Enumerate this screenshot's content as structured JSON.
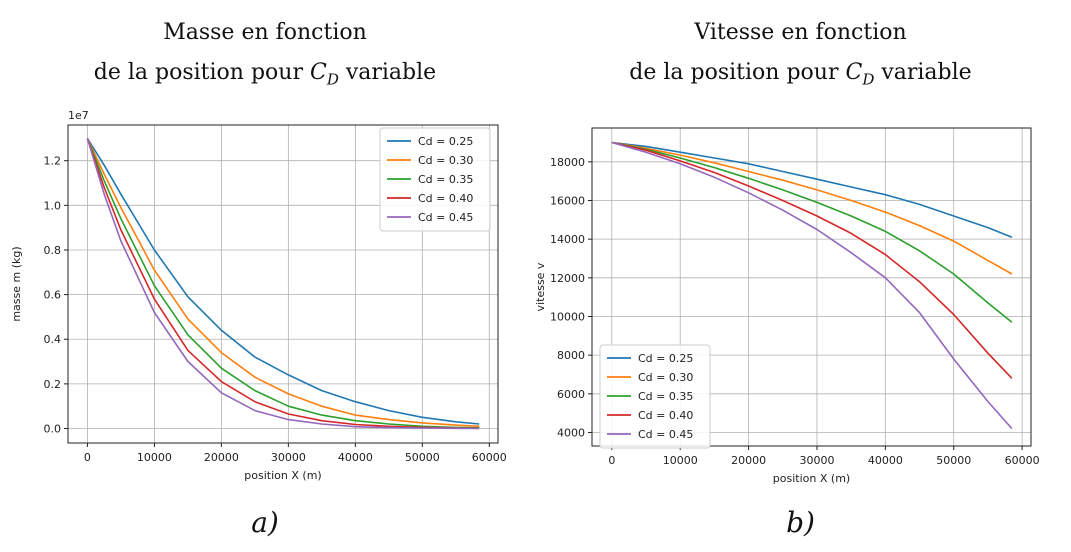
{
  "chart_data": [
    {
      "type": "line",
      "title_line1": "Masse en fonction",
      "title_line2_prefix": "de la position pour ",
      "title_cd": "C",
      "title_cd_sub": "D",
      "title_line2_suffix": " variable",
      "panel_label": "a)",
      "xlabel": "position X (m)",
      "ylabel": "masse m (kg)",
      "offset_text": "1e7",
      "xlim": [
        -2900,
        61300
      ],
      "ylim": [
        -0.065,
        1.36
      ],
      "xticks": [
        0,
        10000,
        20000,
        30000,
        40000,
        50000,
        60000
      ],
      "yticks": [
        0.0,
        0.2,
        0.4,
        0.6,
        0.8,
        1.0,
        1.2
      ],
      "ytick_labels": [
        "0.0",
        "0.2",
        "0.4",
        "0.6",
        "0.8",
        "1.0",
        "1.2"
      ],
      "grid": true,
      "legend_position": "top-right",
      "x": [
        0,
        2500,
        5000,
        10000,
        15000,
        20000,
        25000,
        30000,
        35000,
        40000,
        45000,
        50000,
        55000,
        58500
      ],
      "series": [
        {
          "name": "Cd = 0.25",
          "color": "#1f77b4",
          "values": [
            1.3,
            1.18,
            1.05,
            0.8,
            0.59,
            0.44,
            0.32,
            0.24,
            0.17,
            0.12,
            0.08,
            0.05,
            0.03,
            0.02
          ]
        },
        {
          "name": "Cd = 0.30",
          "color": "#ff7f0e",
          "values": [
            1.3,
            1.14,
            0.99,
            0.71,
            0.49,
            0.34,
            0.23,
            0.155,
            0.1,
            0.06,
            0.04,
            0.025,
            0.015,
            0.01
          ]
        },
        {
          "name": "Cd = 0.35",
          "color": "#2ca02c",
          "values": [
            1.3,
            1.11,
            0.94,
            0.64,
            0.42,
            0.27,
            0.17,
            0.1,
            0.06,
            0.035,
            0.02,
            0.01,
            0.005,
            0.003
          ]
        },
        {
          "name": "Cd = 0.40",
          "color": "#d62728",
          "values": [
            1.3,
            1.08,
            0.89,
            0.58,
            0.35,
            0.21,
            0.12,
            0.065,
            0.035,
            0.018,
            0.01,
            0.005,
            0.002,
            0.001
          ]
        },
        {
          "name": "Cd = 0.45",
          "color": "#9467bd",
          "values": [
            1.3,
            1.05,
            0.84,
            0.52,
            0.3,
            0.16,
            0.08,
            0.04,
            0.02,
            0.008,
            0.004,
            0.002,
            0.001,
            0.0
          ]
        }
      ]
    },
    {
      "type": "line",
      "title_line1": "Vitesse en fonction",
      "title_line2_prefix": "de la position pour ",
      "title_cd": "C",
      "title_cd_sub": "D",
      "title_line2_suffix": " variable",
      "panel_label": "b)",
      "xlabel": "position X (m)",
      "ylabel": "vitesse v",
      "offset_text": "",
      "xlim": [
        -2900,
        61300
      ],
      "ylim": [
        3300,
        19750
      ],
      "xticks": [
        0,
        10000,
        20000,
        30000,
        40000,
        50000,
        60000
      ],
      "yticks": [
        4000,
        6000,
        8000,
        10000,
        12000,
        14000,
        16000,
        18000
      ],
      "ytick_labels": [
        "4000",
        "6000",
        "8000",
        "10000",
        "12000",
        "14000",
        "16000",
        "18000"
      ],
      "grid": true,
      "legend_position": "bottom-left",
      "x": [
        0,
        5000,
        10000,
        15000,
        20000,
        25000,
        30000,
        35000,
        40000,
        45000,
        50000,
        55000,
        58500
      ],
      "series": [
        {
          "name": "Cd = 0.25",
          "color": "#1f77b4",
          "values": [
            19000,
            18800,
            18500,
            18200,
            17900,
            17500,
            17100,
            16700,
            16300,
            15800,
            15200,
            14600,
            14100
          ]
        },
        {
          "name": "Cd = 0.30",
          "color": "#ff7f0e",
          "values": [
            19000,
            18700,
            18350,
            17950,
            17500,
            17050,
            16550,
            16000,
            15400,
            14700,
            13900,
            12900,
            12200
          ]
        },
        {
          "name": "Cd = 0.35",
          "color": "#2ca02c",
          "values": [
            19000,
            18650,
            18200,
            17700,
            17150,
            16550,
            15900,
            15200,
            14400,
            13400,
            12200,
            10700,
            9700
          ]
        },
        {
          "name": "Cd = 0.40",
          "color": "#d62728",
          "values": [
            19000,
            18600,
            18050,
            17450,
            16750,
            16000,
            15200,
            14300,
            13200,
            11800,
            10100,
            8100,
            6800
          ]
        },
        {
          "name": "Cd = 0.45",
          "color": "#9467bd",
          "values": [
            19000,
            18500,
            17900,
            17200,
            16400,
            15500,
            14500,
            13300,
            12000,
            10200,
            7800,
            5600,
            4200
          ]
        }
      ]
    }
  ]
}
